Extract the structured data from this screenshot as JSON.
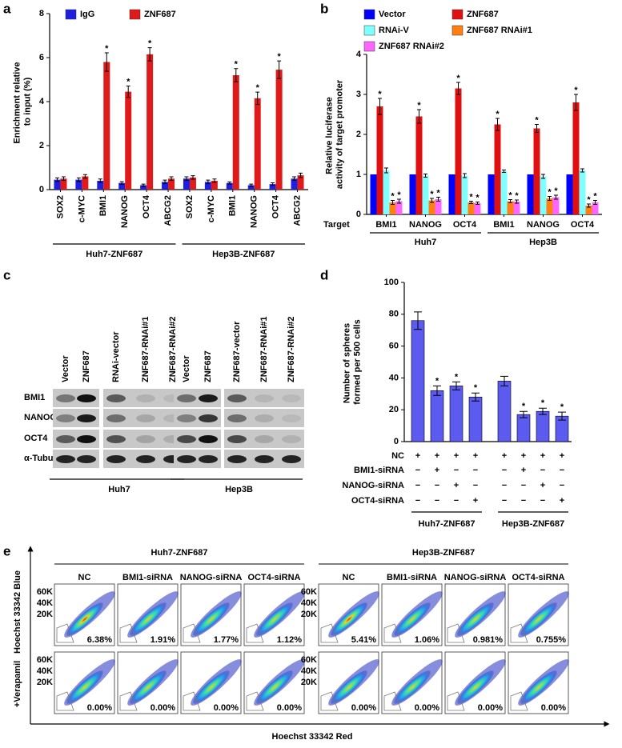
{
  "panel_labels": [
    "a",
    "b",
    "c",
    "d",
    "e"
  ],
  "chart_data": [
    {
      "type": "bar",
      "y_label": "Enrichment relative to input (%)",
      "categories": [
        "SOX2",
        "c-MYC",
        "BMI1",
        "NANOG",
        "OCT4",
        "ABCG2",
        "SOX2",
        "c-MYC",
        "BMI1",
        "NANOG",
        "OCT4",
        "ABCG2"
      ],
      "groups": [
        "Huh7-ZNF687",
        "Hep3B-ZNF687"
      ],
      "series": [
        {
          "name": "IgG",
          "color": "#1f1fe0",
          "values": [
            0.45,
            0.45,
            0.4,
            0.3,
            0.2,
            0.35,
            0.5,
            0.35,
            0.3,
            0.2,
            0.25,
            0.5
          ],
          "errors": [
            0.08,
            0.08,
            0.08,
            0.06,
            0.05,
            0.08,
            0.08,
            0.08,
            0.05,
            0.05,
            0.06,
            0.08
          ]
        },
        {
          "name": "ZNF687",
          "color": "#e01a1a",
          "values": [
            0.5,
            0.6,
            5.8,
            4.45,
            6.15,
            0.5,
            0.55,
            0.4,
            5.2,
            4.15,
            5.45,
            0.65
          ],
          "errors": [
            0.08,
            0.08,
            0.42,
            0.26,
            0.3,
            0.08,
            0.08,
            0.08,
            0.3,
            0.28,
            0.4,
            0.1
          ],
          "annotations": [
            null,
            null,
            "*",
            "*",
            "*",
            null,
            null,
            null,
            "*",
            "*",
            "*",
            null
          ]
        }
      ],
      "ylim": [
        0,
        8
      ],
      "yticks": [
        0,
        2,
        4,
        6,
        8
      ]
    },
    {
      "type": "bar",
      "y_label": "Relative luciferase activity of target promoter",
      "category_label": "Target",
      "categories": [
        "BMI1",
        "NANOG",
        "OCT4",
        "BMI1",
        "NANOG",
        "OCT4"
      ],
      "groups": [
        "Huh7",
        "Hep3B"
      ],
      "series": [
        {
          "name": "Vector",
          "color": "#0000ff",
          "values": [
            1,
            1,
            1,
            1,
            1,
            1
          ],
          "errors": [
            0,
            0,
            0,
            0,
            0,
            0
          ]
        },
        {
          "name": "ZNF687",
          "color": "#e01010",
          "values": [
            2.7,
            2.45,
            3.15,
            2.25,
            2.15,
            2.8
          ],
          "errors": [
            0.2,
            0.17,
            0.15,
            0.15,
            0.1,
            0.2
          ],
          "annotations": [
            "*",
            "*",
            "*",
            "*",
            "*",
            "*"
          ]
        },
        {
          "name": "RNAi-V",
          "color": "#80ffff",
          "values": [
            1.1,
            0.97,
            0.97,
            1.08,
            0.95,
            1.1
          ],
          "errors": [
            0.06,
            0.04,
            0.05,
            0.03,
            0.05,
            0.04
          ]
        },
        {
          "name": "ZNF687 RNAi#1",
          "color": "#ff8010",
          "values": [
            0.3,
            0.35,
            0.3,
            0.33,
            0.4,
            0.22
          ],
          "errors": [
            0.05,
            0.05,
            0.03,
            0.04,
            0.05,
            0.04
          ],
          "annotations": [
            "*",
            "*",
            "*",
            "*",
            "*",
            "*"
          ]
        },
        {
          "name": "ZNF687 RNAi#2",
          "color": "#ff66ff",
          "values": [
            0.33,
            0.38,
            0.28,
            0.32,
            0.43,
            0.3
          ],
          "errors": [
            0.05,
            0.05,
            0.03,
            0.04,
            0.05,
            0.05
          ],
          "annotations": [
            "*",
            "*",
            "*",
            "*",
            "*",
            "*"
          ]
        }
      ],
      "ylim": [
        0,
        4
      ],
      "yticks": [
        0,
        1,
        2,
        3,
        4
      ]
    },
    {
      "type": "bar",
      "y_label": "Number of spheres formed per 500 cells",
      "color": "#5b5bef",
      "values": [
        76,
        32,
        35,
        28,
        38,
        17,
        19,
        16
      ],
      "errors": [
        5.5,
        3,
        2.5,
        2.5,
        3,
        2,
        2,
        2.5
      ],
      "annotations": [
        null,
        "*",
        "*",
        "*",
        null,
        "*",
        "*",
        "*"
      ],
      "conditions": [
        {
          "name": "NC",
          "values": [
            "+",
            "+",
            "+",
            "+",
            "+",
            "+",
            "+",
            "+"
          ]
        },
        {
          "name": "BMI1-siRNA",
          "values": [
            "−",
            "+",
            "−",
            "−",
            "−",
            "+",
            "−",
            "−"
          ]
        },
        {
          "name": "NANOG-siRNA",
          "values": [
            "−",
            "−",
            "+",
            "−",
            "−",
            "−",
            "+",
            "−"
          ]
        },
        {
          "name": "OCT4-siRNA",
          "values": [
            "−",
            "−",
            "−",
            "+",
            "−",
            "−",
            "−",
            "+"
          ]
        }
      ],
      "groups": [
        "Huh7-ZNF687",
        "Hep3B-ZNF687"
      ],
      "ylim": [
        0,
        100
      ],
      "yticks": [
        0,
        20,
        40,
        60,
        80,
        100
      ]
    }
  ],
  "blot": {
    "lanes": [
      "Vector",
      "ZNF687",
      "RNAi-vector",
      "ZNF687-RNAi#1",
      "ZNF687-RNAi#2",
      "Vector",
      "ZNF687",
      "ZNF687-vector",
      "ZNF687-RNAi#1",
      "ZNF687-RNAi#2"
    ],
    "rows": [
      "BMI1",
      "NANOG",
      "OCT4",
      "α-Tubulin"
    ],
    "groups": [
      "Huh7",
      "Hep3B"
    ]
  },
  "flow": {
    "groups": [
      "Huh7-ZNF687",
      "Hep3B-ZNF687"
    ],
    "conditions": [
      "NC",
      "BMI1-siRNA",
      "NANOG-siRNA",
      "OCT4-siRNA"
    ],
    "y_label": "Hoechst 33342 Blue",
    "row2_label": "+Verapamil",
    "x_label": "Hoechst 33342 Red",
    "y_tick_labels": [
      "60K",
      "40K",
      "20K"
    ],
    "percentages": [
      [
        "6.38%",
        "1.91%",
        "1.77%",
        "1.12%",
        "5.41%",
        "1.06%",
        "0.981%",
        "0.755%"
      ],
      [
        "0.00%",
        "0.00%",
        "0.00%",
        "0.00%",
        "0.00%",
        "0.00%",
        "0.00%",
        "0.00%"
      ]
    ]
  }
}
